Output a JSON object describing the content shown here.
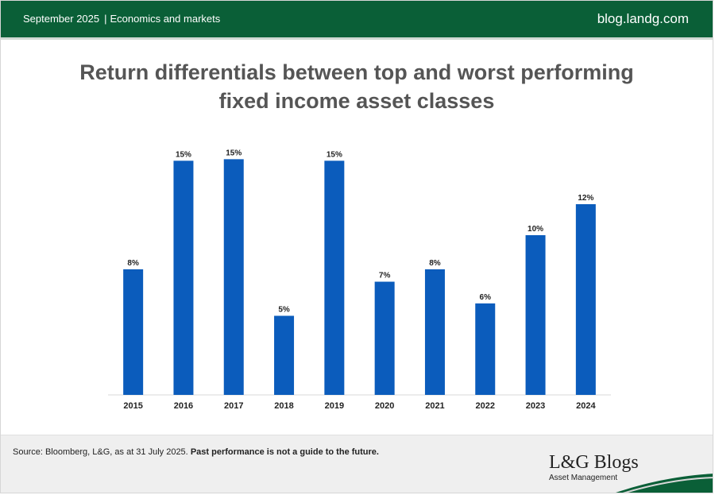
{
  "header": {
    "date": "September 2025",
    "category": "Economics and markets",
    "site": "blog.landg.com"
  },
  "title_line1": "Return differentials between top and worst performing",
  "title_line2": "fixed income asset classes",
  "chart_data": {
    "type": "bar",
    "title": "Return differentials between top and worst performing fixed income asset classes",
    "categories": [
      "2015",
      "2016",
      "2017",
      "2018",
      "2019",
      "2020",
      "2021",
      "2022",
      "2023",
      "2024"
    ],
    "values": [
      8.1,
      15.1,
      15.2,
      5.1,
      15.1,
      7.3,
      8.1,
      5.9,
      10.3,
      12.3
    ],
    "labels": [
      "8%",
      "15%",
      "15%",
      "5%",
      "15%",
      "7%",
      "8%",
      "6%",
      "10%",
      "12%"
    ],
    "ylim": [
      0,
      16.5
    ],
    "grid": false,
    "bar_color": "#0b5cbc"
  },
  "footer": {
    "source_text": "Source: Bloomberg, L&G, as at 31 July 2025.",
    "disclaimer": "Past performance is not a guide to the future.",
    "logo_main": "L&G Blogs",
    "logo_sub": "Asset Management"
  },
  "colors": {
    "header_green": "#0a5f37",
    "bar_blue": "#0b5cbc"
  }
}
